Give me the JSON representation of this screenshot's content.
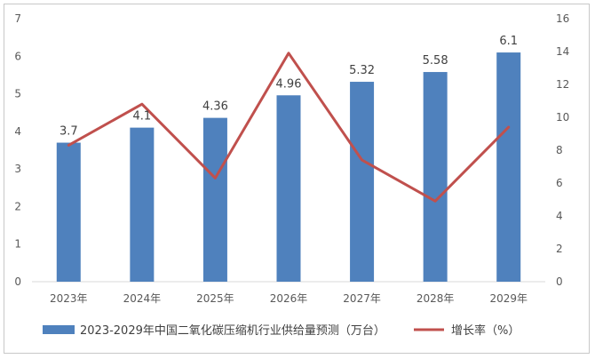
{
  "chart_data": {
    "type": "bar",
    "categories": [
      "2023年",
      "2024年",
      "2025年",
      "2026年",
      "2027年",
      "2028年",
      "2029年"
    ],
    "series": [
      {
        "name": "2023-2029年中国二氧化碳压缩机行业供给量预测（万台）",
        "type": "bar",
        "axis": "left",
        "values": [
          3.7,
          4.1,
          4.36,
          4.96,
          5.32,
          5.58,
          6.1
        ],
        "data_labels": [
          "3.7",
          "4.1",
          "4.36",
          "4.96",
          "5.32",
          "5.58",
          "6.1"
        ],
        "color": "#4F81BD"
      },
      {
        "name": "增长率（%）",
        "type": "line",
        "axis": "right",
        "values": [
          8.3,
          10.8,
          6.3,
          13.9,
          7.4,
          4.9,
          9.4
        ],
        "color": "#C0504D"
      }
    ],
    "y_left": {
      "min": 0,
      "max": 7,
      "step": 1,
      "ticks": [
        "0",
        "1",
        "2",
        "3",
        "4",
        "5",
        "6",
        "7"
      ]
    },
    "y_right": {
      "min": 0,
      "max": 16,
      "step": 2,
      "ticks": [
        "0",
        "2",
        "4",
        "6",
        "8",
        "10",
        "12",
        "14",
        "16"
      ]
    },
    "grid": false,
    "legend_position": "bottom"
  }
}
